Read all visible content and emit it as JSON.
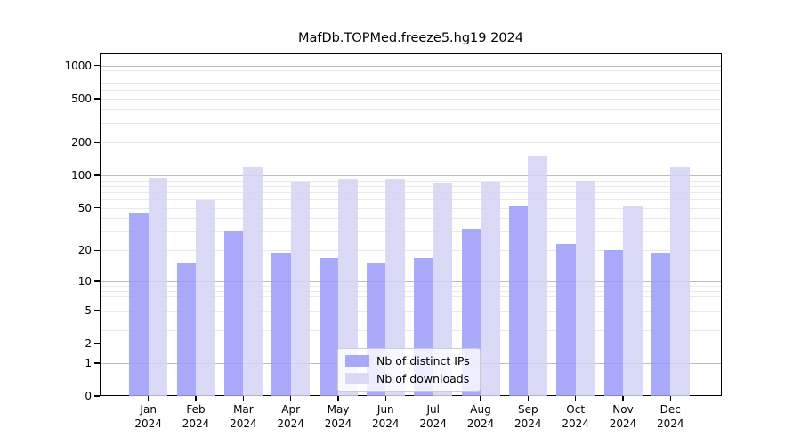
{
  "chart_data": {
    "type": "bar",
    "title": "MafDb.TOPMed.freeze5.hg19 2024",
    "categories": [
      "Jan",
      "Feb",
      "Mar",
      "Apr",
      "May",
      "Jun",
      "Jul",
      "Aug",
      "Sep",
      "Oct",
      "Nov",
      "Dec"
    ],
    "year_label": "2024",
    "series": [
      {
        "name": "Nb of distinct IPs",
        "color": "#9b9bf9",
        "values": [
          45,
          15,
          31,
          19,
          17,
          15,
          17,
          32,
          52,
          23,
          20,
          19
        ]
      },
      {
        "name": "Nb of downloads",
        "color": "#d3d3f6",
        "values": [
          94,
          59,
          118,
          88,
          93,
          92,
          84,
          86,
          151,
          89,
          53,
          119
        ]
      }
    ],
    "xlabel": "",
    "ylabel": "",
    "yscale": "log1p",
    "ylim": [
      0,
      1290
    ],
    "y_ticks": [
      1000,
      500,
      200,
      100,
      50,
      20,
      10,
      5,
      2,
      1,
      0
    ],
    "grid": {
      "on": true,
      "major_values": [
        1,
        10,
        100,
        1000
      ],
      "minor_values": [
        2,
        3,
        4,
        5,
        6,
        7,
        8,
        9,
        20,
        30,
        40,
        50,
        60,
        70,
        80,
        90,
        200,
        300,
        400,
        500,
        600,
        700,
        800,
        900
      ],
      "major_color": "#bbbbbb",
      "minor_color": "#e9e9e9"
    },
    "legend_position": "lower center",
    "bar_opacity": 0.85,
    "background_color": "#ffffff"
  }
}
